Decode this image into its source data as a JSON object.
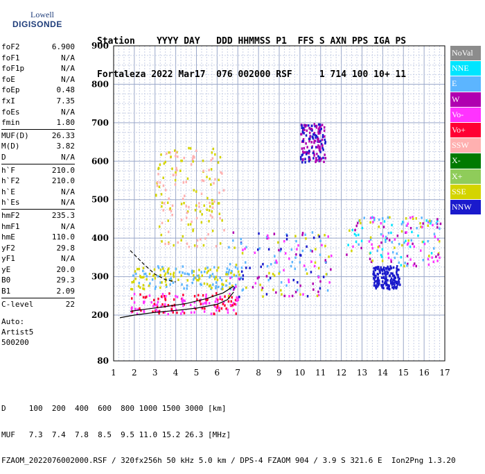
{
  "logo": {
    "top": "Lowell",
    "main": "DIGISONDE"
  },
  "header": {
    "line1": "Station    YYYY DAY   DDD HHMMSS P1  FFS S AXN PPS IGA PS",
    "line2": "Fortaleza 2022 Mar17  076 002000 RSF     1 714 100 10+ 11"
  },
  "params": [
    {
      "name": "foF2",
      "value": "6.900"
    },
    {
      "name": "foF1",
      "value": "N/A"
    },
    {
      "name": "foF1p",
      "value": "N/A"
    },
    {
      "name": "foE",
      "value": "N/A"
    },
    {
      "name": "foEp",
      "value": "0.48"
    },
    {
      "name": "fxI",
      "value": "7.35"
    },
    {
      "name": "foEs",
      "value": "N/A"
    },
    {
      "name": "fmin",
      "value": "1.80"
    },
    {
      "sep": true
    },
    {
      "name": "MUF(D)",
      "value": "26.33"
    },
    {
      "name": "M(D)",
      "value": "3.82"
    },
    {
      "name": "D",
      "value": "N/A"
    },
    {
      "sep": true
    },
    {
      "name": "h`F",
      "value": "210.0"
    },
    {
      "name": "h`F2",
      "value": "210.0"
    },
    {
      "name": "h`E",
      "value": "N/A"
    },
    {
      "name": "h`Es",
      "value": "N/A"
    },
    {
      "sep": true
    },
    {
      "name": "hmF2",
      "value": "235.3"
    },
    {
      "name": "hmF1",
      "value": "N/A"
    },
    {
      "name": "hmE",
      "value": "110.0"
    },
    {
      "name": "yF2",
      "value": "29.8"
    },
    {
      "name": "yF1",
      "value": "N/A"
    },
    {
      "name": "yE",
      "value": "20.0"
    },
    {
      "name": "B0",
      "value": "29.3"
    },
    {
      "name": "B1",
      "value": "2.09"
    },
    {
      "sep": true
    },
    {
      "name": "C-level",
      "value": "22"
    }
  ],
  "notes": [
    "Auto:",
    "Artist5",
    "500200"
  ],
  "legend": [
    {
      "label": "NoVal",
      "color": "#8c8c8c"
    },
    {
      "label": "NNE",
      "color": "#00e5ff"
    },
    {
      "label": "E",
      "color": "#5cb5ff"
    },
    {
      "label": "W",
      "color": "#b000b0"
    },
    {
      "label": "Vo-",
      "color": "#ff33ff"
    },
    {
      "label": "Vo+",
      "color": "#ff0033"
    },
    {
      "label": "SSW",
      "color": "#ffb0b0"
    },
    {
      "label": "X-",
      "color": "#007a00"
    },
    {
      "label": "X+",
      "color": "#8fcc5a"
    },
    {
      "label": "SSE",
      "color": "#d4d400"
    },
    {
      "label": "NNW",
      "color": "#1a1acc"
    }
  ],
  "footer": {
    "line1": "D     100  200  400  600  800 1000 1500 3000 [km]",
    "line2": "MUF   7.3  7.4  7.8  8.5  9.5 11.0 15.2 26.3 [MHz]",
    "line3": "FZAOM_2022076002000.RSF / 320fx256h 50 kHz 5.0 km / DPS-4 FZAOM 904 / 3.9 S 321.6 E  Ion2Png 1.3.20"
  },
  "chart_data": {
    "type": "scatter",
    "xlabel": "",
    "ylabel": "",
    "xlim": [
      1,
      17
    ],
    "ylim": [
      80,
      900
    ],
    "x_ticks": [
      1,
      2,
      3,
      4,
      5,
      6,
      7,
      8,
      9,
      10,
      11,
      12,
      13,
      14,
      15,
      16,
      17
    ],
    "y_ticks": [
      80,
      200,
      300,
      400,
      500,
      600,
      700,
      800,
      900
    ],
    "traces": [
      {
        "name": "virtual-height-trace-solid",
        "x": [
          1.3,
          2.0,
          3.0,
          4.0,
          5.0,
          6.0,
          6.5,
          6.8
        ],
        "y": [
          193,
          200,
          207,
          212,
          218,
          228,
          240,
          260
        ]
      },
      {
        "name": "virtual-height-trace-dashed",
        "x": [
          1.8,
          2.5,
          3.0,
          3.5,
          4.0
        ],
        "y": [
          368,
          330,
          306,
          292,
          286
        ]
      },
      {
        "name": "profile-trace",
        "x": [
          1.8,
          2.5,
          3.5,
          4.5,
          5.5,
          6.3,
          6.8
        ],
        "y": [
          210,
          215,
          222,
          230,
          243,
          258,
          275
        ]
      }
    ],
    "echo_clusters": [
      {
        "x": [
          1.8,
          7.0
        ],
        "y": [
          205,
          260
        ],
        "colors": [
          "#ff0033",
          "#ff33ff"
        ]
      },
      {
        "x": [
          1.8,
          7.0
        ],
        "y": [
          270,
          330
        ],
        "colors": [
          "#d4d400",
          "#5cb5ff"
        ]
      },
      {
        "x": [
          3.0,
          6.3
        ],
        "y": [
          380,
          640
        ],
        "colors": [
          "#d4d400",
          "#ffb0b0"
        ]
      },
      {
        "x": [
          6.5,
          11.5
        ],
        "y": [
          250,
          420
        ],
        "colors": [
          "#d4d400",
          "#5cb5ff",
          "#ff33ff",
          "#b000b0",
          "#1a1acc"
        ]
      },
      {
        "x": [
          10.0,
          11.2
        ],
        "y": [
          600,
          700
        ],
        "colors": [
          "#1a1acc",
          "#b000b0"
        ]
      },
      {
        "x": [
          12.2,
          16.8
        ],
        "y": [
          330,
          460
        ],
        "colors": [
          "#5cb5ff",
          "#00e5ff",
          "#ff33ff",
          "#b000b0",
          "#d4d400"
        ]
      },
      {
        "x": [
          13.5,
          14.8
        ],
        "y": [
          270,
          330
        ],
        "colors": [
          "#1a1acc"
        ]
      }
    ]
  }
}
